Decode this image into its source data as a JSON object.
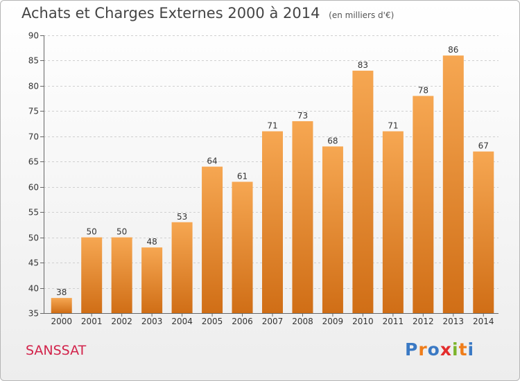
{
  "header": {
    "title": "Achats et Charges Externes 2000 à 2014",
    "unit": "(en milliers d'€)"
  },
  "footer": {
    "town": "SANSSAT",
    "logo": [
      "P",
      "r",
      "o",
      "x",
      "i",
      "t",
      "i"
    ]
  },
  "colors": {
    "bar_top": "#f6a752",
    "bar_bottom": "#d06e16",
    "town": "#d2224a"
  },
  "chart_data": {
    "type": "bar",
    "title": "Achats et Charges Externes 2000 à 2014",
    "subtitle": "(en milliers d'€)",
    "categories": [
      "2000",
      "2001",
      "2002",
      "2003",
      "2004",
      "2005",
      "2006",
      "2007",
      "2008",
      "2009",
      "2010",
      "2011",
      "2012",
      "2013",
      "2014"
    ],
    "values": [
      38,
      50,
      50,
      48,
      53,
      64,
      61,
      71,
      73,
      68,
      83,
      71,
      78,
      86,
      67
    ],
    "ylim": [
      35,
      90
    ],
    "yticks": [
      35,
      40,
      45,
      50,
      55,
      60,
      65,
      70,
      75,
      80,
      85,
      90
    ],
    "grid": true,
    "data_labels": true
  }
}
